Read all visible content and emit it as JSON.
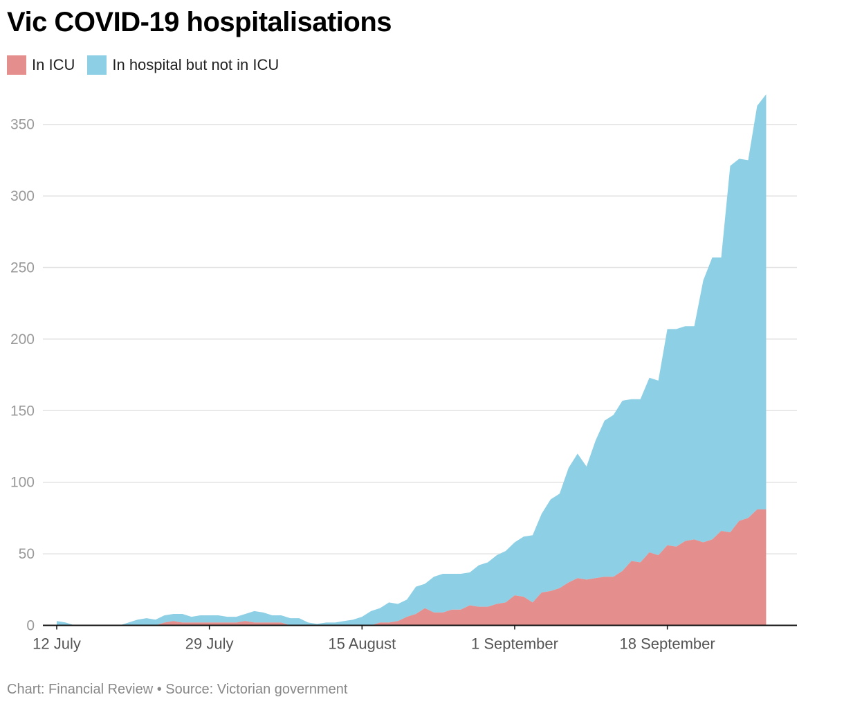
{
  "chart_data": {
    "type": "area",
    "title": "Vic COVID-19 hospitalisations",
    "stacked": true,
    "x_start": "2021-07-12",
    "x_ticks": [
      "12 July",
      "29 July",
      "15 August",
      "1 September",
      "18 September"
    ],
    "y_ticks": [
      0,
      50,
      100,
      150,
      200,
      250,
      300,
      350
    ],
    "ylim": [
      0,
      375
    ],
    "grid": true,
    "legend_position": "top-left",
    "series": [
      {
        "name": "In ICU",
        "color": "#e48f8d",
        "values": [
          0,
          0,
          0,
          0,
          0,
          0,
          0,
          0,
          0,
          0,
          0,
          0,
          2,
          3,
          2,
          2,
          2,
          2,
          2,
          2,
          2,
          3,
          2,
          2,
          2,
          2,
          0,
          0,
          0,
          0,
          0,
          0,
          0,
          0,
          0,
          0,
          2,
          2,
          3,
          6,
          8,
          12,
          9,
          9,
          11,
          11,
          14,
          13,
          13,
          15,
          16,
          21,
          20,
          16,
          23,
          24,
          26,
          30,
          33,
          32,
          33,
          34,
          34,
          38,
          45,
          44,
          51,
          49,
          56,
          55,
          59,
          60,
          58,
          60,
          66,
          65,
          73,
          75,
          81,
          81
        ]
      },
      {
        "name": "In hospital but not in ICU",
        "color": "#8dcfe4",
        "values": [
          3,
          2,
          0,
          0,
          0,
          0,
          0,
          0,
          2,
          4,
          5,
          4,
          5,
          5,
          6,
          4,
          5,
          5,
          5,
          4,
          4,
          5,
          8,
          7,
          5,
          5,
          5,
          5,
          2,
          1,
          2,
          2,
          3,
          4,
          6,
          10,
          10,
          14,
          12,
          12,
          19,
          17,
          25,
          27,
          25,
          25,
          23,
          29,
          31,
          34,
          36,
          37,
          42,
          47,
          55,
          64,
          66,
          80,
          87,
          79,
          96,
          109,
          113,
          119,
          113,
          114,
          122,
          122,
          151,
          152,
          150,
          149,
          183,
          197,
          191,
          256,
          253,
          250,
          282,
          290
        ]
      }
    ]
  },
  "footer": "Chart: Financial Review • Source: Victorian government"
}
